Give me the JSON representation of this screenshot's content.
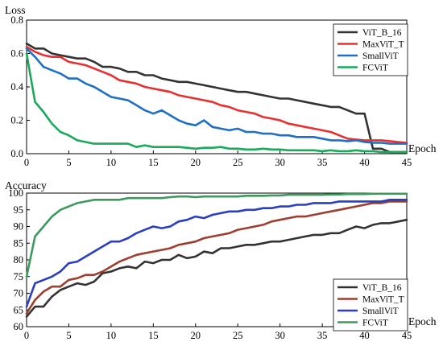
{
  "chart_data": [
    {
      "type": "line",
      "ylabel": "Loss",
      "xlabel": "Epoch",
      "xlim": [
        0,
        45
      ],
      "ylim": [
        0,
        0.8
      ],
      "xticks": [
        0,
        5,
        10,
        15,
        20,
        25,
        30,
        35,
        40,
        45
      ],
      "yticks": [
        0.0,
        0.2,
        0.4,
        0.6,
        0.8
      ],
      "ytick_labels": [
        "0.0",
        "0.2",
        "0.4",
        "0.6",
        "0.8"
      ],
      "grid": false,
      "legend_position": "top-right",
      "x": [
        0,
        1,
        2,
        3,
        4,
        5,
        6,
        7,
        8,
        9,
        10,
        11,
        12,
        13,
        14,
        15,
        16,
        17,
        18,
        19,
        20,
        21,
        22,
        23,
        24,
        25,
        26,
        27,
        28,
        29,
        30,
        31,
        32,
        33,
        34,
        35,
        36,
        37,
        38,
        39,
        40,
        41,
        42,
        43,
        44,
        45
      ],
      "series": [
        {
          "name": "ViT_B_16",
          "color": "#333333",
          "values": [
            0.66,
            0.63,
            0.63,
            0.6,
            0.59,
            0.58,
            0.57,
            0.57,
            0.55,
            0.52,
            0.52,
            0.51,
            0.49,
            0.49,
            0.47,
            0.47,
            0.45,
            0.44,
            0.43,
            0.43,
            0.42,
            0.41,
            0.4,
            0.39,
            0.38,
            0.37,
            0.37,
            0.36,
            0.35,
            0.34,
            0.33,
            0.33,
            0.32,
            0.31,
            0.3,
            0.29,
            0.28,
            0.28,
            0.26,
            0.24,
            0.24,
            0.03,
            0.03,
            0.01,
            0.01,
            0.01
          ]
        },
        {
          "name": "MaxViT_T",
          "color": "#e83030",
          "values": [
            0.64,
            0.61,
            0.59,
            0.58,
            0.58,
            0.55,
            0.54,
            0.53,
            0.51,
            0.49,
            0.47,
            0.44,
            0.43,
            0.42,
            0.4,
            0.39,
            0.38,
            0.37,
            0.35,
            0.34,
            0.33,
            0.32,
            0.31,
            0.29,
            0.28,
            0.26,
            0.25,
            0.24,
            0.22,
            0.21,
            0.2,
            0.18,
            0.17,
            0.16,
            0.15,
            0.14,
            0.13,
            0.11,
            0.09,
            0.085,
            0.08,
            0.08,
            0.08,
            0.075,
            0.07,
            0.065
          ]
        },
        {
          "name": "SmallViT",
          "color": "#1f6fc4",
          "values": [
            0.63,
            0.58,
            0.52,
            0.5,
            0.48,
            0.45,
            0.45,
            0.42,
            0.4,
            0.37,
            0.34,
            0.33,
            0.32,
            0.29,
            0.26,
            0.24,
            0.26,
            0.23,
            0.2,
            0.18,
            0.17,
            0.2,
            0.16,
            0.15,
            0.14,
            0.15,
            0.13,
            0.13,
            0.12,
            0.12,
            0.11,
            0.11,
            0.1,
            0.1,
            0.1,
            0.09,
            0.08,
            0.08,
            0.075,
            0.08,
            0.07,
            0.065,
            0.065,
            0.06,
            0.06,
            0.06
          ]
        },
        {
          "name": "FCViT",
          "color": "#1aa85a",
          "values": [
            0.6,
            0.31,
            0.25,
            0.18,
            0.13,
            0.11,
            0.08,
            0.07,
            0.06,
            0.06,
            0.06,
            0.06,
            0.06,
            0.04,
            0.05,
            0.04,
            0.04,
            0.04,
            0.04,
            0.035,
            0.03,
            0.035,
            0.035,
            0.04,
            0.03,
            0.03,
            0.025,
            0.025,
            0.03,
            0.025,
            0.025,
            0.02,
            0.02,
            0.02,
            0.02,
            0.015,
            0.02,
            0.015,
            0.015,
            0.02,
            0.015,
            0.015,
            0.01,
            0.01,
            0.01,
            0.01
          ]
        }
      ]
    },
    {
      "type": "line",
      "ylabel": "Accuracy",
      "xlabel": "Epoch",
      "xlim": [
        0,
        45
      ],
      "ylim": [
        60,
        100
      ],
      "xticks": [
        0,
        5,
        10,
        15,
        20,
        25,
        30,
        35,
        40,
        45
      ],
      "yticks": [
        60,
        65,
        70,
        75,
        80,
        85,
        90,
        95,
        100
      ],
      "ytick_labels": [
        "60",
        "65",
        "70",
        "75",
        "80",
        "85",
        "90",
        "95",
        "100"
      ],
      "grid": false,
      "legend_position": "bottom-right",
      "x": [
        0,
        1,
        2,
        3,
        4,
        5,
        6,
        7,
        8,
        9,
        10,
        11,
        12,
        13,
        14,
        15,
        16,
        17,
        18,
        19,
        20,
        21,
        22,
        23,
        24,
        25,
        26,
        27,
        28,
        29,
        30,
        31,
        32,
        33,
        34,
        35,
        36,
        37,
        38,
        39,
        40,
        41,
        42,
        43,
        44,
        45
      ],
      "series": [
        {
          "name": "ViT_B_16",
          "color": "#333333",
          "values": [
            63,
            66,
            66,
            69,
            71,
            72,
            73,
            72.5,
            73.5,
            76,
            76.5,
            77.5,
            78,
            77.5,
            79.5,
            79,
            80,
            80,
            81.5,
            80.5,
            81,
            82.5,
            82,
            83.5,
            83.5,
            84,
            84.5,
            84.5,
            85,
            85.5,
            85.5,
            86,
            86.5,
            87,
            87.5,
            87.5,
            88,
            88,
            89,
            90,
            89.5,
            90.5,
            91,
            91,
            91.5,
            92
          ]
        },
        {
          "name": "MaxViT_T",
          "color": "#9c3f2e",
          "values": [
            64,
            68,
            70.5,
            72,
            72,
            74,
            74.5,
            75.5,
            75.5,
            76.5,
            78,
            79.5,
            80.5,
            81.5,
            82,
            82.5,
            83,
            83.5,
            84.5,
            85,
            85.5,
            86.5,
            87,
            87.5,
            88,
            89,
            89.5,
            90,
            90.5,
            91.5,
            92,
            92.5,
            93,
            93,
            93.5,
            94,
            94.5,
            95,
            95.5,
            96,
            96.5,
            97,
            97,
            97.5,
            97.5,
            97.5
          ]
        },
        {
          "name": "SmallViT",
          "color": "#2a3fc0",
          "values": [
            66,
            73,
            74,
            75,
            76.5,
            79,
            79.5,
            81,
            82.5,
            84,
            85.5,
            85.5,
            86.5,
            88,
            89,
            90,
            89.5,
            90,
            91.5,
            92,
            93,
            92.5,
            93.5,
            94,
            94.5,
            94.5,
            95,
            95,
            95.5,
            95.5,
            96,
            96,
            96.5,
            96.5,
            97,
            97,
            97,
            97.5,
            97.5,
            97.5,
            97.5,
            97.5,
            97.5,
            98,
            98,
            98
          ]
        },
        {
          "name": "FCViT",
          "color": "#3d9a5c",
          "values": [
            75,
            87,
            90,
            93,
            95,
            96,
            97,
            97.5,
            98,
            98,
            98,
            98,
            98.5,
            98.5,
            98.5,
            98.5,
            98.5,
            98.8,
            99,
            99,
            98.8,
            99,
            99,
            99,
            99,
            99,
            99.2,
            99.2,
            99.2,
            99.3,
            99.3,
            99.5,
            99.5,
            99.5,
            99.5,
            99.5,
            99.6,
            99.6,
            99.7,
            99.7,
            99.7,
            99.8,
            99.8,
            99.8,
            99.8,
            99.8
          ]
        }
      ]
    }
  ]
}
